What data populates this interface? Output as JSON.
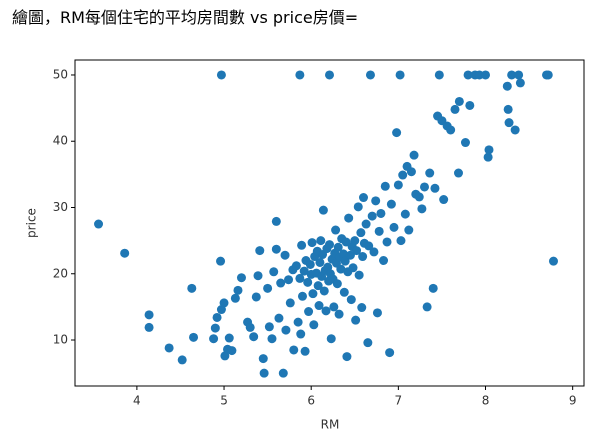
{
  "heading": "繪圖，RM每個住宅的平均房間數 vs price房價=",
  "chart_data": {
    "type": "scatter",
    "xlabel": "RM",
    "ylabel": "price",
    "color": "#1f77b4",
    "xlim": [
      3.29,
      9.13
    ],
    "ylim": [
      3.06,
      52.26
    ],
    "xticks": [
      4,
      5,
      6,
      7,
      8,
      9
    ],
    "yticks": [
      10,
      20,
      30,
      40,
      50
    ],
    "x": [
      3.56,
      3.86,
      4.14,
      4.14,
      4.37,
      4.52,
      4.63,
      4.65,
      4.88,
      4.9,
      4.92,
      4.96,
      4.97,
      4.97,
      5.0,
      5.01,
      5.04,
      5.06,
      5.09,
      5.13,
      5.16,
      5.2,
      5.27,
      5.3,
      5.34,
      5.37,
      5.39,
      5.41,
      5.45,
      5.46,
      5.5,
      5.52,
      5.55,
      5.57,
      5.6,
      5.6,
      5.63,
      5.65,
      5.68,
      5.7,
      5.71,
      5.74,
      5.76,
      5.79,
      5.8,
      5.83,
      5.85,
      5.87,
      5.87,
      5.88,
      5.89,
      5.9,
      5.92,
      5.93,
      5.94,
      5.96,
      5.97,
      5.99,
      6.0,
      6.01,
      6.02,
      6.03,
      6.04,
      6.06,
      6.07,
      6.08,
      6.09,
      6.1,
      6.11,
      6.12,
      6.13,
      6.14,
      6.15,
      6.16,
      6.17,
      6.18,
      6.19,
      6.2,
      6.21,
      6.21,
      6.22,
      6.23,
      6.24,
      6.25,
      6.26,
      6.27,
      6.28,
      6.29,
      6.3,
      6.31,
      6.32,
      6.33,
      6.34,
      6.35,
      6.37,
      6.38,
      6.39,
      6.4,
      6.41,
      6.42,
      6.43,
      6.45,
      6.46,
      6.47,
      6.48,
      6.5,
      6.51,
      6.52,
      6.54,
      6.55,
      6.57,
      6.58,
      6.59,
      6.6,
      6.61,
      6.63,
      6.65,
      6.66,
      6.68,
      6.7,
      6.72,
      6.74,
      6.76,
      6.78,
      6.8,
      6.83,
      6.85,
      6.87,
      6.9,
      6.92,
      6.95,
      6.98,
      7.0,
      7.02,
      7.03,
      7.05,
      7.08,
      7.1,
      7.12,
      7.15,
      7.18,
      7.2,
      7.24,
      7.27,
      7.3,
      7.33,
      7.36,
      7.4,
      7.42,
      7.45,
      7.47,
      7.5,
      7.52,
      7.56,
      7.6,
      7.65,
      7.69,
      7.7,
      7.77,
      7.8,
      7.82,
      7.88,
      7.93,
      8.0,
      8.03,
      8.04,
      8.25,
      8.26,
      8.27,
      8.3,
      8.34,
      8.38,
      8.4,
      8.7,
      8.72,
      8.78
    ],
    "values": [
      27.5,
      23.1,
      13.8,
      11.9,
      8.8,
      7.0,
      17.8,
      10.4,
      10.2,
      11.8,
      13.4,
      21.9,
      50,
      14.6,
      15.6,
      7.6,
      8.6,
      10.3,
      8.4,
      16.3,
      17.5,
      19.4,
      12.7,
      11.9,
      10.5,
      16.5,
      19.7,
      23.5,
      7.2,
      5.0,
      17.8,
      12.0,
      10.2,
      20.3,
      23.7,
      27.9,
      13.3,
      18.6,
      5.0,
      22.8,
      11.5,
      19.1,
      15.6,
      20.6,
      8.5,
      21.2,
      12.7,
      50,
      19.3,
      10.9,
      24.3,
      16.6,
      20.4,
      8.3,
      22.0,
      18.7,
      14.3,
      21.4,
      19.9,
      24.7,
      17.0,
      12.3,
      22.6,
      20.1,
      23.4,
      18.2,
      15.2,
      21.7,
      25.0,
      19.6,
      22.9,
      29.6,
      17.4,
      20.5,
      14.4,
      23.8,
      21.0,
      18.9,
      50,
      24.4,
      20.0,
      10.2,
      22.2,
      19.2,
      15.0,
      23.1,
      26.6,
      21.6,
      18.5,
      24.0,
      13.9,
      22.5,
      20.7,
      25.3,
      23.0,
      17.2,
      21.9,
      24.8,
      7.5,
      20.3,
      28.4,
      22.8,
      16.1,
      24.1,
      20.9,
      25.0,
      13.0,
      23.5,
      30.1,
      19.8,
      26.2,
      14.9,
      22.6,
      31.5,
      24.6,
      27.5,
      9.6,
      24.2,
      50,
      28.7,
      23.3,
      31.0,
      14.1,
      26.4,
      29.1,
      22.0,
      33.2,
      24.8,
      8.1,
      30.5,
      27.0,
      41.3,
      33.4,
      50,
      25.0,
      34.9,
      29.0,
      36.2,
      26.6,
      35.4,
      37.9,
      32.0,
      31.6,
      29.8,
      33.1,
      15.0,
      35.2,
      17.8,
      32.9,
      43.8,
      50,
      43.1,
      31.2,
      42.3,
      41.7,
      44.8,
      35.2,
      46.0,
      39.8,
      50,
      45.4,
      50,
      50,
      50,
      37.6,
      38.7,
      48.3,
      44.8,
      42.8,
      50,
      41.7,
      50,
      48.8,
      50,
      50,
      21.9
    ]
  }
}
